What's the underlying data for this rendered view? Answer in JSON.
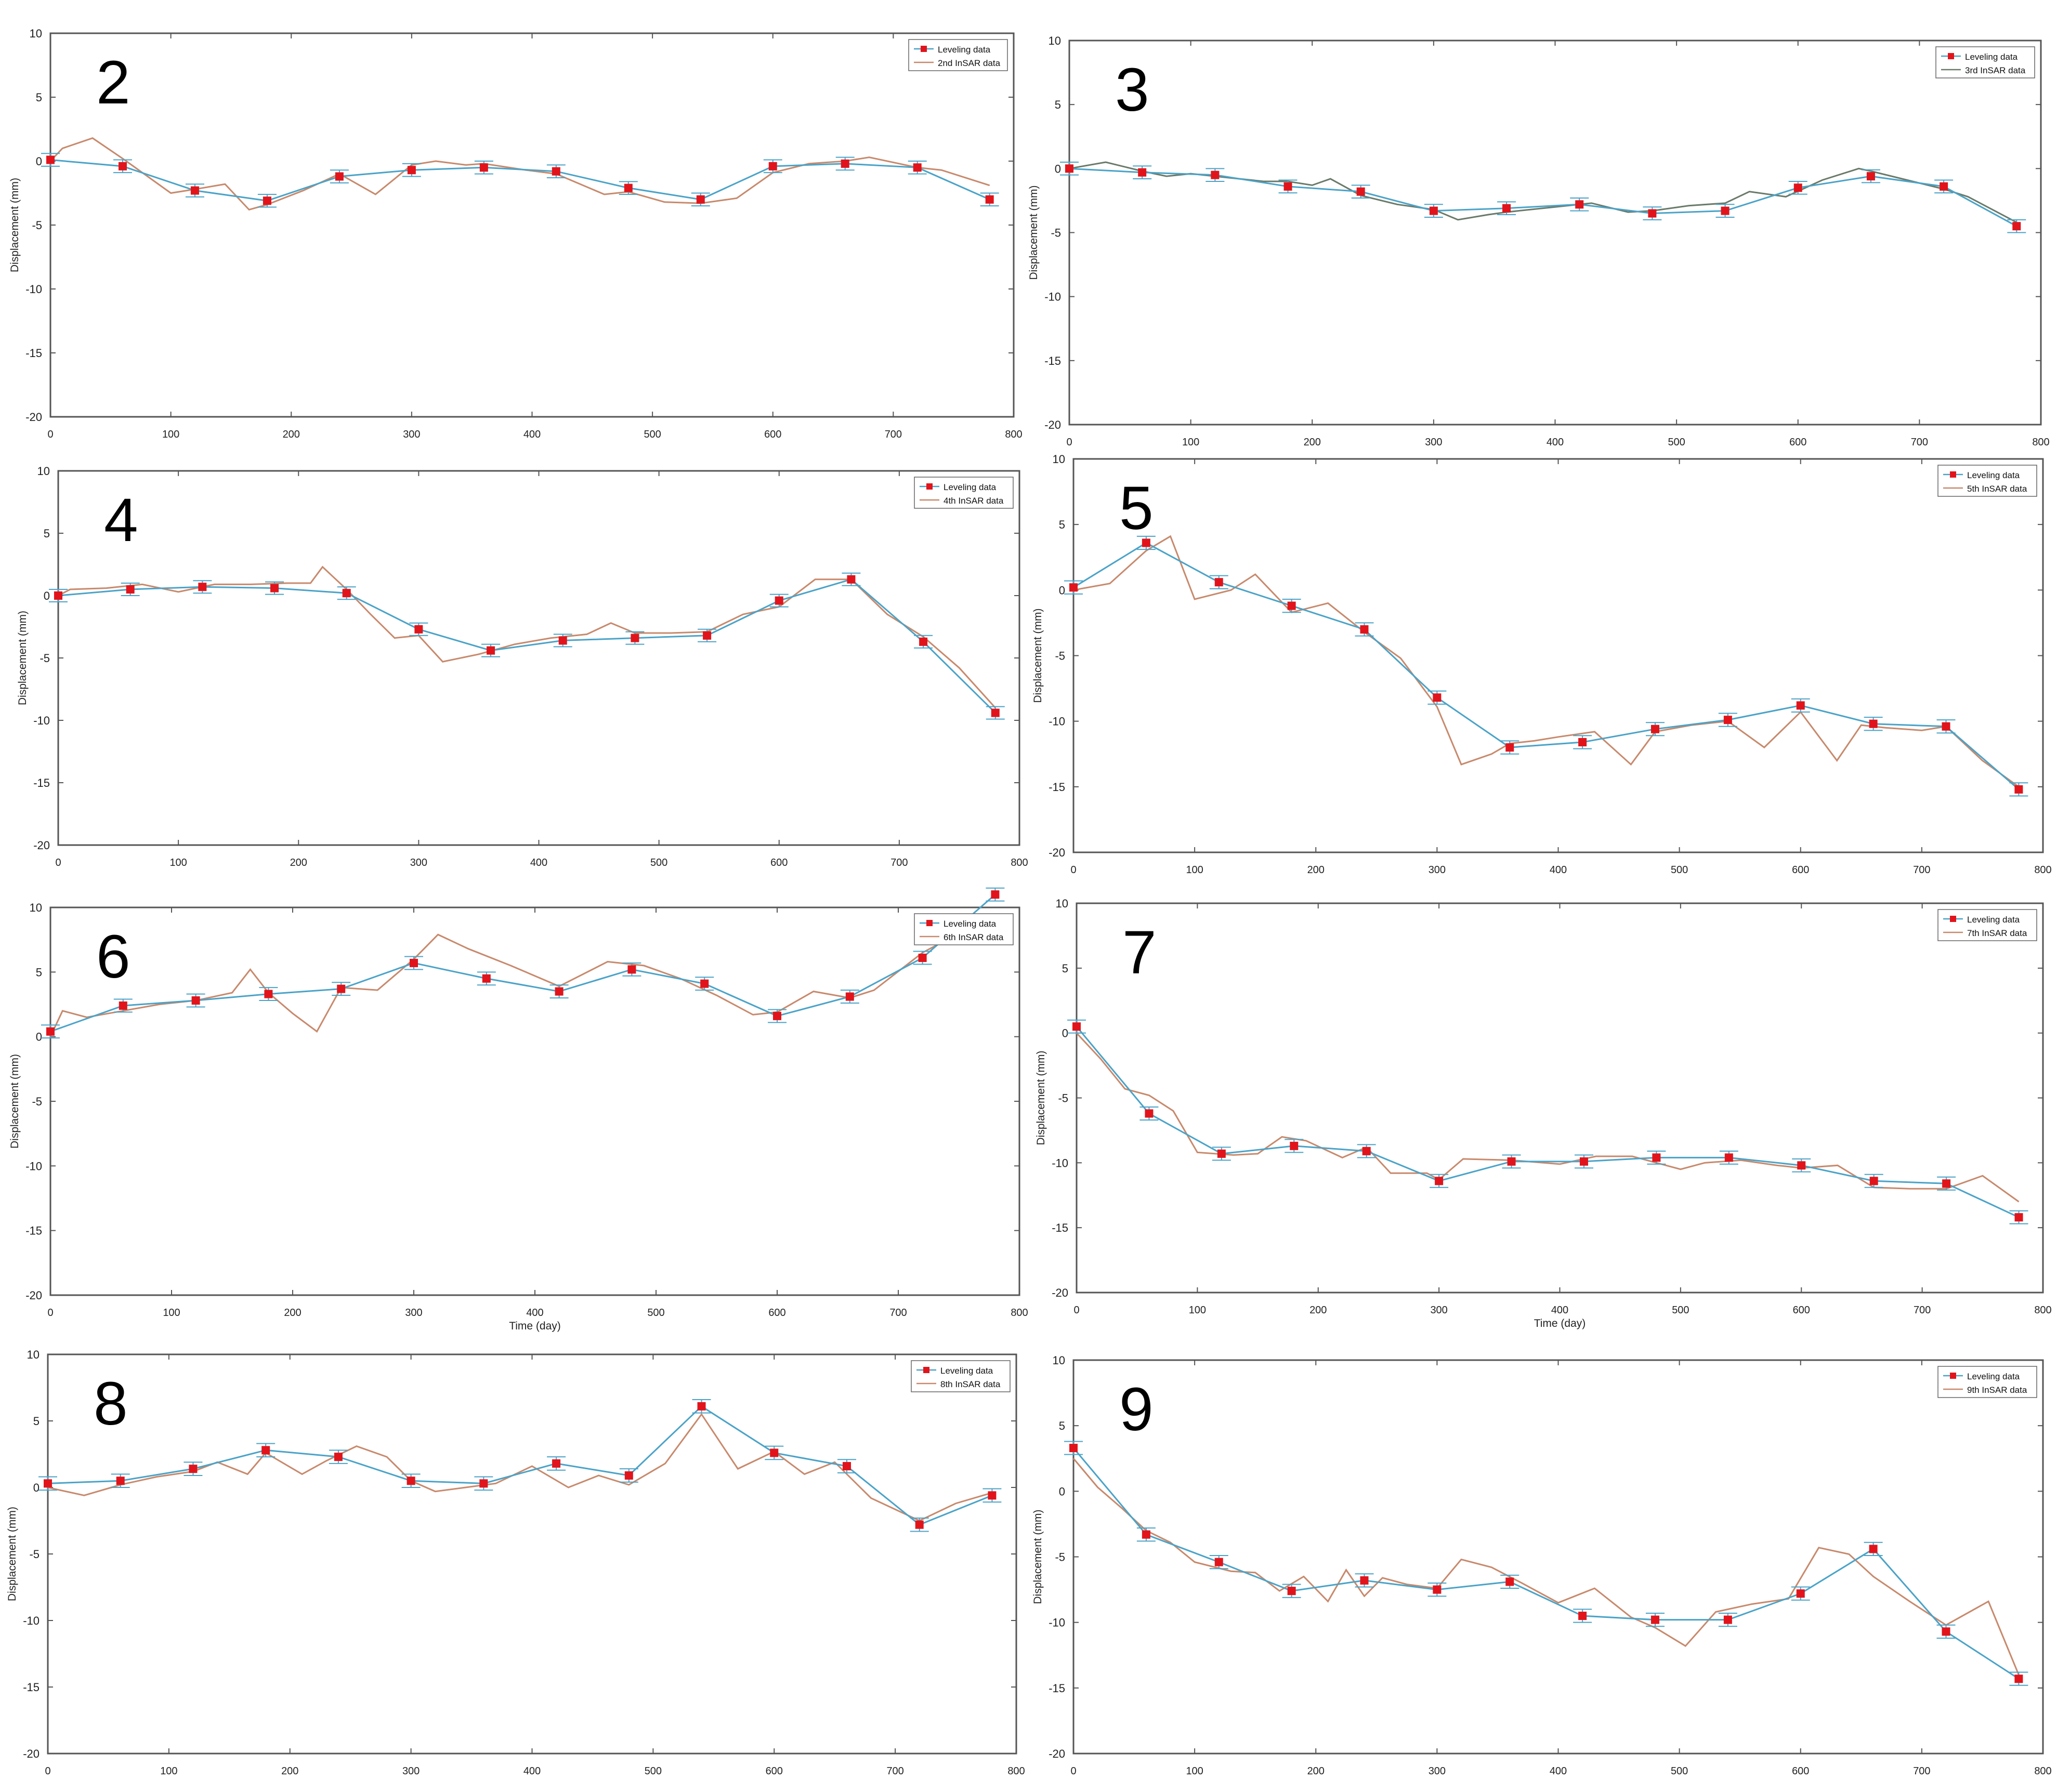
{
  "figure": {
    "colors": {
      "leveling_line": "#4aa3c8",
      "leveling_marker": "#e2141b",
      "insar_line": "#c8896c",
      "insar_line_alt": "#6a7a6a",
      "errorbar": "#4aa3c8",
      "axis": "#555555",
      "panel_bg": "#ffffff"
    }
  },
  "chart_data": [
    {
      "panel_label": "2",
      "type": "line",
      "xlabel": "",
      "ylabel": "Displacement (mm)",
      "xlim": [
        0,
        800
      ],
      "ylim": [
        -20,
        10
      ],
      "xticks": [
        "0",
        "100",
        "200",
        "300",
        "400",
        "500",
        "600",
        "700",
        "800"
      ],
      "yticks": [
        "-20",
        "-15",
        "-10",
        "-5",
        "0",
        "5",
        "10"
      ],
      "legend": [
        "Leveling data",
        "2nd InSAR data"
      ],
      "legend_position": "top-right",
      "series": [
        {
          "name": "Leveling data",
          "x": [
            0,
            60,
            120,
            180,
            240,
            300,
            360,
            420,
            480,
            540,
            600,
            660,
            720,
            780
          ],
          "y": [
            0.1,
            -0.4,
            -2.3,
            -3.1,
            -1.2,
            -0.7,
            -0.5,
            -0.8,
            -2.1,
            -3.0,
            -0.4,
            -0.2,
            -0.5,
            -3.0
          ]
        },
        {
          "name": "2nd InSAR data",
          "x": [
            0,
            10,
            35,
            60,
            100,
            120,
            145,
            165,
            180,
            210,
            240,
            270,
            300,
            320,
            345,
            360,
            395,
            420,
            460,
            480,
            510,
            540,
            570,
            600,
            630,
            660,
            680,
            720,
            740,
            780
          ],
          "y": [
            0.0,
            1.0,
            1.8,
            0.2,
            -2.5,
            -2.2,
            -1.8,
            -3.8,
            -3.4,
            -2.3,
            -1.0,
            -2.6,
            -0.3,
            0.0,
            -0.3,
            -0.2,
            -0.7,
            -1.0,
            -2.6,
            -2.4,
            -3.2,
            -3.3,
            -2.9,
            -0.9,
            -0.2,
            0.0,
            0.3,
            -0.5,
            -0.7,
            -1.9
          ]
        }
      ]
    },
    {
      "panel_label": "3",
      "type": "line",
      "xlabel": "",
      "ylabel": "Displacement (mm)",
      "xlim": [
        0,
        800
      ],
      "ylim": [
        -20,
        10
      ],
      "xticks": [
        "0",
        "100",
        "200",
        "300",
        "400",
        "500",
        "600",
        "700",
        "800"
      ],
      "yticks": [
        "-20",
        "-15",
        "-10",
        "-5",
        "0",
        "5",
        "10"
      ],
      "legend": [
        "Leveling data",
        "3rd InSAR data"
      ],
      "legend_position": "top-right",
      "series": [
        {
          "name": "Leveling data",
          "x": [
            0,
            60,
            120,
            180,
            240,
            300,
            360,
            420,
            480,
            540,
            600,
            660,
            720,
            780
          ],
          "y": [
            0.0,
            -0.3,
            -0.5,
            -1.4,
            -1.8,
            -3.3,
            -3.1,
            -2.8,
            -3.5,
            -3.3,
            -1.5,
            -0.6,
            -1.4,
            -4.5
          ]
        },
        {
          "name": "3rd InSAR data",
          "x": [
            0,
            30,
            60,
            80,
            100,
            130,
            160,
            180,
            200,
            215,
            240,
            270,
            300,
            320,
            345,
            360,
            400,
            430,
            460,
            480,
            510,
            540,
            560,
            590,
            620,
            650,
            660,
            690,
            720,
            740,
            780
          ],
          "y": [
            0.0,
            0.5,
            -0.2,
            -0.6,
            -0.4,
            -0.7,
            -1.0,
            -1.0,
            -1.3,
            -0.8,
            -2.1,
            -2.8,
            -3.2,
            -4.0,
            -3.6,
            -3.4,
            -3.0,
            -2.7,
            -3.4,
            -3.3,
            -2.9,
            -2.7,
            -1.8,
            -2.2,
            -0.9,
            0.0,
            -0.2,
            -0.9,
            -1.6,
            -2.2,
            -4.2
          ]
        }
      ]
    },
    {
      "panel_label": "4",
      "type": "line",
      "xlabel": "",
      "ylabel": "Displacement (mm)",
      "xlim": [
        0,
        800
      ],
      "ylim": [
        -20,
        10
      ],
      "xticks": [
        "0",
        "100",
        "200",
        "300",
        "400",
        "500",
        "600",
        "700",
        "800"
      ],
      "yticks": [
        "-20",
        "-15",
        "-10",
        "-5",
        "0",
        "5",
        "10"
      ],
      "legend": [
        "Leveling data",
        "4th InSAR data"
      ],
      "legend_position": "top-right",
      "series": [
        {
          "name": "Leveling data",
          "x": [
            0,
            60,
            120,
            180,
            240,
            300,
            360,
            420,
            480,
            540,
            600,
            660,
            720,
            780
          ],
          "y": [
            0.0,
            0.5,
            0.7,
            0.6,
            0.2,
            -2.7,
            -4.4,
            -3.6,
            -3.4,
            -3.2,
            -0.4,
            1.3,
            -3.7,
            -9.4
          ]
        },
        {
          "name": "4th InSAR data",
          "x": [
            0,
            10,
            40,
            70,
            100,
            130,
            160,
            190,
            210,
            220,
            240,
            260,
            280,
            300,
            320,
            350,
            380,
            410,
            440,
            460,
            480,
            510,
            540,
            570,
            600,
            630,
            660,
            690,
            720,
            750,
            780
          ],
          "y": [
            0.0,
            0.5,
            0.6,
            0.9,
            0.3,
            0.9,
            0.9,
            1.0,
            1.0,
            2.3,
            0.5,
            -1.5,
            -3.4,
            -3.2,
            -5.3,
            -4.7,
            -3.9,
            -3.4,
            -3.1,
            -2.2,
            -3.0,
            -3.0,
            -2.9,
            -1.5,
            -0.9,
            1.3,
            1.3,
            -1.5,
            -3.3,
            -5.8,
            -9.0
          ]
        }
      ]
    },
    {
      "panel_label": "5",
      "type": "line",
      "xlabel": "",
      "ylabel": "Displacement (mm)",
      "xlim": [
        0,
        800
      ],
      "ylim": [
        -20,
        10
      ],
      "xticks": [
        "0",
        "100",
        "200",
        "300",
        "400",
        "500",
        "600",
        "700",
        "800"
      ],
      "yticks": [
        "-20",
        "-15",
        "-10",
        "-5",
        "0",
        "5",
        "10"
      ],
      "legend": [
        "Leveling data",
        "5th InSAR data"
      ],
      "legend_position": "top-right",
      "series": [
        {
          "name": "Leveling data",
          "x": [
            0,
            60,
            120,
            180,
            240,
            300,
            360,
            420,
            480,
            540,
            600,
            660,
            720,
            780
          ],
          "y": [
            0.2,
            3.6,
            0.6,
            -1.2,
            -3.0,
            -8.2,
            -12.0,
            -11.6,
            -10.6,
            -9.9,
            -8.8,
            -10.2,
            -10.4,
            -15.2
          ]
        },
        {
          "name": "5th InSAR data",
          "x": [
            0,
            30,
            60,
            80,
            100,
            130,
            150,
            180,
            210,
            240,
            270,
            300,
            320,
            345,
            360,
            380,
            400,
            430,
            460,
            480,
            510,
            540,
            570,
            600,
            630,
            650,
            670,
            700,
            720,
            750,
            780
          ],
          "y": [
            0.0,
            0.5,
            3.0,
            4.1,
            -0.7,
            0.0,
            1.2,
            -1.7,
            -1.0,
            -3.2,
            -5.2,
            -8.9,
            -13.3,
            -12.5,
            -11.7,
            -11.5,
            -11.2,
            -10.8,
            -13.3,
            -10.8,
            -10.3,
            -10.0,
            -12.0,
            -9.3,
            -13.0,
            -10.3,
            -10.5,
            -10.7,
            -10.4,
            -13.0,
            -15.0
          ]
        }
      ]
    },
    {
      "panel_label": "6",
      "type": "line",
      "xlabel": "Time (day)",
      "ylabel": "Displacement (mm)",
      "xlim": [
        0,
        800
      ],
      "ylim": [
        -20,
        10
      ],
      "xticks": [
        "0",
        "100",
        "200",
        "300",
        "400",
        "500",
        "600",
        "700",
        "800"
      ],
      "yticks": [
        "-20",
        "-15",
        "-10",
        "-5",
        "0",
        "5",
        "10"
      ],
      "legend": [
        "Leveling data",
        "6th InSAR data"
      ],
      "legend_position": "top-right",
      "series": [
        {
          "name": "Leveling data",
          "x": [
            0,
            60,
            120,
            180,
            240,
            300,
            360,
            420,
            480,
            540,
            600,
            660,
            720,
            780
          ],
          "y": [
            0.4,
            2.4,
            2.8,
            3.3,
            3.7,
            5.7,
            4.5,
            3.5,
            5.2,
            4.1,
            1.6,
            3.1,
            6.1,
            11.0
          ]
        },
        {
          "name": "6th InSAR data",
          "x": [
            0,
            10,
            30,
            60,
            90,
            120,
            150,
            165,
            180,
            200,
            220,
            240,
            270,
            300,
            320,
            345,
            380,
            420,
            460,
            490,
            520,
            550,
            580,
            600,
            630,
            660,
            680,
            720,
            750,
            780
          ],
          "y": [
            0.0,
            2.0,
            1.5,
            2.0,
            2.5,
            2.8,
            3.4,
            5.2,
            3.4,
            1.8,
            0.4,
            3.8,
            3.6,
            6.0,
            7.9,
            6.8,
            5.5,
            3.9,
            5.8,
            5.5,
            4.5,
            3.2,
            1.7,
            1.9,
            3.5,
            3.0,
            3.6,
            6.5,
            8.0,
            9.5
          ]
        }
      ]
    },
    {
      "panel_label": "7",
      "type": "line",
      "xlabel": "Time (day)",
      "ylabel": "Displacement (mm)",
      "xlim": [
        0,
        800
      ],
      "ylim": [
        -20,
        10
      ],
      "xticks": [
        "0",
        "100",
        "200",
        "300",
        "400",
        "500",
        "600",
        "700",
        "800"
      ],
      "yticks": [
        "-20",
        "-15",
        "-10",
        "-5",
        "0",
        "5",
        "10"
      ],
      "legend": [
        "Leveling data",
        "7th InSAR data"
      ],
      "legend_position": "top-right",
      "series": [
        {
          "name": "Leveling data",
          "x": [
            0,
            60,
            120,
            180,
            240,
            300,
            360,
            420,
            480,
            540,
            600,
            660,
            720,
            780
          ],
          "y": [
            0.5,
            -6.2,
            -9.3,
            -8.7,
            -9.1,
            -11.4,
            -9.9,
            -9.9,
            -9.6,
            -9.6,
            -10.2,
            -11.4,
            -11.6,
            -14.2
          ]
        },
        {
          "name": "7th InSAR data",
          "x": [
            0,
            20,
            40,
            60,
            80,
            100,
            130,
            150,
            170,
            190,
            220,
            240,
            260,
            290,
            300,
            320,
            360,
            400,
            430,
            460,
            500,
            520,
            550,
            580,
            600,
            630,
            660,
            690,
            720,
            750,
            780
          ],
          "y": [
            0.0,
            -2.0,
            -4.3,
            -4.8,
            -6.0,
            -9.2,
            -9.4,
            -9.3,
            -8.0,
            -8.3,
            -9.6,
            -8.8,
            -10.8,
            -10.8,
            -11.3,
            -9.7,
            -9.8,
            -10.1,
            -9.5,
            -9.5,
            -10.5,
            -10.0,
            -9.8,
            -10.2,
            -10.4,
            -10.2,
            -11.9,
            -12.0,
            -12.0,
            -11.0,
            -13.0
          ]
        }
      ]
    },
    {
      "panel_label": "8",
      "type": "line",
      "xlabel": "",
      "ylabel": "Displacement (mm)",
      "xlim": [
        0,
        800
      ],
      "ylim": [
        -20,
        10
      ],
      "xticks": [
        "0",
        "100",
        "200",
        "300",
        "400",
        "500",
        "600",
        "700",
        "800"
      ],
      "yticks": [
        "-20",
        "-15",
        "-10",
        "-5",
        "0",
        "5",
        "10"
      ],
      "legend": [
        "Leveling data",
        "8th InSAR data"
      ],
      "legend_position": "top-right",
      "series": [
        {
          "name": "Leveling data",
          "x": [
            0,
            60,
            120,
            180,
            240,
            300,
            360,
            420,
            480,
            540,
            600,
            660,
            720,
            780
          ],
          "y": [
            0.3,
            0.5,
            1.4,
            2.8,
            2.3,
            0.5,
            0.3,
            1.8,
            0.9,
            6.1,
            2.6,
            1.6,
            -2.8,
            -0.6
          ]
        },
        {
          "name": "8th InSAR data",
          "x": [
            0,
            30,
            60,
            90,
            120,
            140,
            165,
            180,
            210,
            230,
            255,
            280,
            300,
            320,
            345,
            370,
            400,
            430,
            455,
            480,
            510,
            540,
            570,
            600,
            625,
            650,
            680,
            720,
            750,
            780
          ],
          "y": [
            0.0,
            -0.6,
            0.2,
            0.8,
            1.2,
            1.9,
            1.0,
            2.6,
            1.0,
            2.0,
            3.1,
            2.3,
            0.5,
            -0.3,
            0.0,
            0.3,
            1.6,
            0.0,
            0.9,
            0.2,
            1.8,
            5.5,
            1.4,
            2.7,
            1.0,
            1.9,
            -0.8,
            -2.5,
            -1.2,
            -0.4
          ]
        }
      ]
    },
    {
      "panel_label": "9",
      "type": "line",
      "xlabel": "",
      "ylabel": "Displacement (mm)",
      "xlim": [
        0,
        800
      ],
      "ylim": [
        -20,
        10
      ],
      "xticks": [
        "0",
        "100",
        "200",
        "300",
        "400",
        "500",
        "600",
        "700",
        "800"
      ],
      "yticks": [
        "-20",
        "-15",
        "-10",
        "-5",
        "0",
        "5",
        "10"
      ],
      "legend": [
        "Leveling data",
        "9th InSAR data"
      ],
      "legend_position": "top-right",
      "series": [
        {
          "name": "Leveling data",
          "x": [
            0,
            60,
            120,
            180,
            240,
            300,
            360,
            420,
            480,
            540,
            600,
            660,
            720,
            780
          ],
          "y": [
            3.3,
            -3.3,
            -5.4,
            -7.6,
            -6.8,
            -7.5,
            -6.9,
            -9.5,
            -9.8,
            -9.8,
            -7.8,
            -4.4,
            -10.7,
            -14.3
          ]
        },
        {
          "name": "9th InSAR data",
          "x": [
            0,
            20,
            40,
            60,
            80,
            100,
            130,
            150,
            170,
            190,
            210,
            225,
            240,
            255,
            275,
            300,
            320,
            345,
            370,
            400,
            430,
            460,
            480,
            505,
            530,
            560,
            590,
            615,
            640,
            660,
            690,
            720,
            755,
            780
          ],
          "y": [
            2.5,
            0.3,
            -1.3,
            -3.0,
            -3.9,
            -5.4,
            -6.1,
            -6.2,
            -7.6,
            -6.5,
            -8.4,
            -6.0,
            -8.0,
            -6.6,
            -7.1,
            -7.4,
            -5.2,
            -5.8,
            -7.0,
            -8.5,
            -7.4,
            -9.6,
            -10.4,
            -11.8,
            -9.2,
            -8.6,
            -8.2,
            -4.3,
            -4.8,
            -6.5,
            -8.4,
            -10.2,
            -8.4,
            -14.0
          ]
        }
      ]
    }
  ]
}
